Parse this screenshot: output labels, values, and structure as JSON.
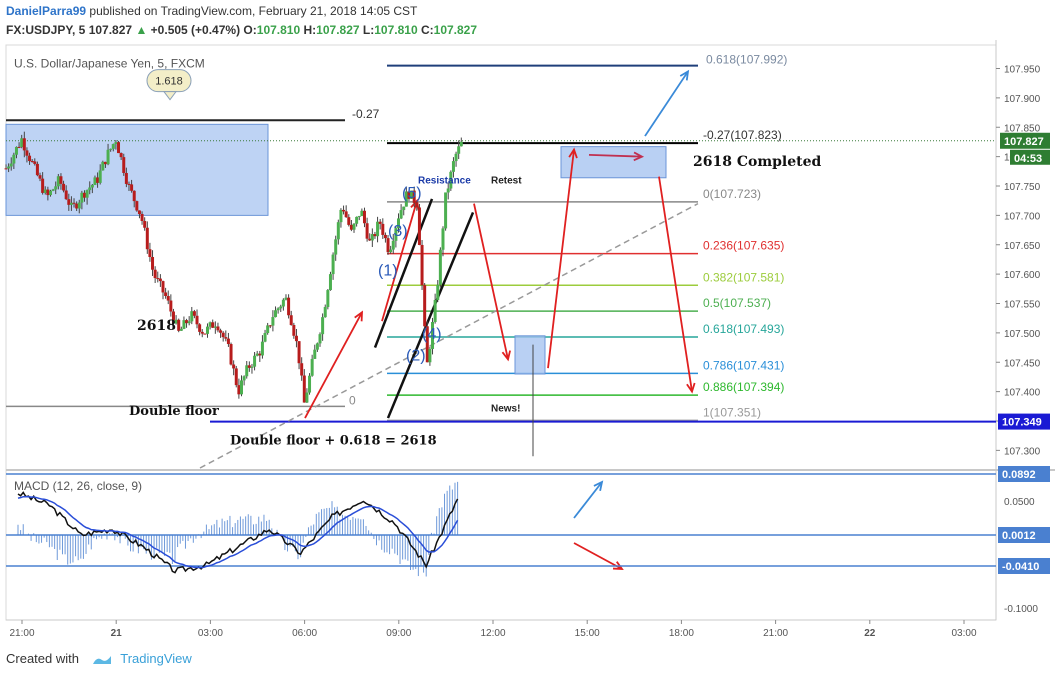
{
  "header": {
    "user": "DanielParra99",
    "published": "published on TradingView.com, February 21, 2018 14:05 CST",
    "symbol": "FX:USDJPY, 5",
    "last": "107.827",
    "change_arrow": "▲",
    "change": "+0.505 (+0.47%)",
    "o_label": "O:",
    "o": "107.810",
    "h_label": "H:",
    "h": "107.827",
    "l_label": "L:",
    "l": "107.810",
    "c_label": "C:",
    "c": "107.827"
  },
  "footer": {
    "created_with": "Created with",
    "brand": "TradingView"
  },
  "chart_data": {
    "type": "candlestick",
    "instrument": "U.S. Dollar/Japanese Yen, 5, FXCM",
    "indicator": "MACD (12, 26, close, 9)",
    "price_axis": {
      "ticks": [
        "107.950",
        "107.900",
        "107.850",
        "107.800",
        "107.750",
        "107.700",
        "107.650",
        "107.600",
        "107.550",
        "107.500",
        "107.450",
        "107.400",
        "107.350",
        "107.300"
      ],
      "range": [
        107.27,
        107.99
      ]
    },
    "time_axis": {
      "ticks": [
        "21:00",
        "21",
        "03:00",
        "06:00",
        "09:00",
        "12:00",
        "15:00",
        "18:00",
        "21:00",
        "22",
        "03:00"
      ]
    },
    "price_labels": {
      "last": "107.827",
      "countdown": "04:53",
      "line": "107.349"
    },
    "macd_axis": {
      "ticks": [
        "0.0500",
        "-0.1000"
      ],
      "labels": [
        "0.0892",
        "0.0012",
        "-0.0410"
      ]
    },
    "fib_levels": [
      {
        "label": "-0.27(107.823)",
        "value": 107.823,
        "color": "#000000"
      },
      {
        "label": "0(107.723)",
        "value": 107.723,
        "color": "#888888"
      },
      {
        "label": "0.236(107.635)",
        "value": 107.635,
        "color": "#e03030"
      },
      {
        "label": "0.382(107.581)",
        "value": 107.581,
        "color": "#9ccc3c"
      },
      {
        "label": "0.5(107.537)",
        "value": 107.537,
        "color": "#4caf50"
      },
      {
        "label": "0.618(107.493)",
        "value": 107.493,
        "color": "#26a69a"
      },
      {
        "label": "0.786(107.431)",
        "value": 107.431,
        "color": "#2a8fd8"
      },
      {
        "label": "0.886(107.394)",
        "value": 107.394,
        "color": "#2eb82e"
      },
      {
        "label": "1(107.351)",
        "value": 107.351,
        "color": "#999999"
      }
    ],
    "fib_top_label": "0.618(107.992)",
    "annotations": {
      "bubble": "1.618",
      "left_neg": "-0.27",
      "left_zero": "0",
      "completed": "2618 Completed",
      "resistance": "Resistance",
      "retest": "Retest",
      "news": "News!",
      "n2618": "2618",
      "double_floor": "Double floor",
      "double_floor_eq": "Double floor + 0.618 = 2618",
      "waves": [
        "(1)",
        "(2)",
        "(3)",
        "(4)",
        "(5)"
      ]
    },
    "candles_approx": [
      [
        -0.5,
        107.78
      ],
      [
        0.0,
        107.83
      ],
      [
        0.4,
        107.78
      ],
      [
        0.8,
        107.73
      ],
      [
        1.2,
        107.76
      ],
      [
        1.6,
        107.71
      ],
      [
        2.0,
        107.74
      ],
      [
        2.4,
        107.76
      ],
      [
        2.7,
        107.8
      ],
      [
        3.0,
        107.83
      ],
      [
        3.4,
        107.75
      ],
      [
        3.8,
        107.7
      ],
      [
        4.2,
        107.6
      ],
      [
        4.6,
        107.56
      ],
      [
        5.0,
        107.5
      ],
      [
        5.4,
        107.53
      ],
      [
        5.8,
        107.5
      ],
      [
        6.2,
        107.52
      ],
      [
        6.6,
        107.47
      ],
      [
        6.9,
        107.4
      ],
      [
        7.2,
        107.44
      ],
      [
        7.6,
        107.47
      ],
      [
        8.0,
        107.53
      ],
      [
        8.4,
        107.56
      ],
      [
        8.6,
        107.52
      ],
      [
        8.8,
        107.47
      ],
      [
        9.0,
        107.38
      ],
      [
        9.3,
        107.46
      ],
      [
        9.6,
        107.53
      ],
      [
        9.9,
        107.63
      ],
      [
        10.2,
        107.72
      ],
      [
        10.5,
        107.67
      ],
      [
        10.8,
        107.71
      ],
      [
        11.1,
        107.65
      ],
      [
        11.4,
        107.69
      ],
      [
        11.7,
        107.64
      ],
      [
        12.0,
        107.7
      ],
      [
        12.3,
        107.74
      ],
      [
        12.6,
        107.72
      ],
      [
        12.9,
        107.44
      ],
      [
        13.2,
        107.56
      ],
      [
        13.5,
        107.73
      ],
      [
        13.8,
        107.8
      ],
      [
        14.05,
        107.827
      ]
    ]
  }
}
